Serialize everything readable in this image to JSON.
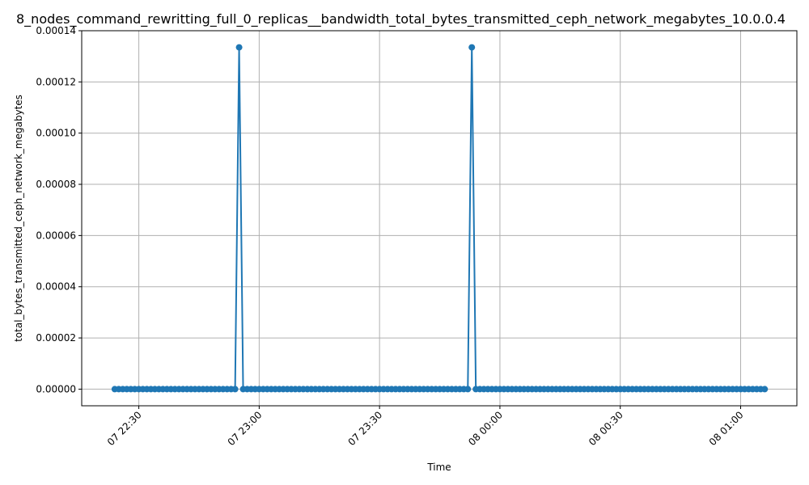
{
  "chart_data": {
    "type": "line",
    "title": "8_nodes_command_rewritting_full_0_replicas__bandwidth_total_bytes_transmitted_ceph_network_megabytes_10.0.0.4",
    "xlabel": "Time",
    "ylabel": "total_bytes_transmitted_ceph_network_megabytes",
    "x_start": "07 22:24",
    "x_end": "08 01:06",
    "sample_interval_minutes": 1,
    "x_ticks": [
      "07 22:30",
      "07 23:00",
      "07 23:30",
      "08 00:00",
      "08 00:30",
      "08 01:00"
    ],
    "y_ticks": [
      "0.00000",
      "0.00002",
      "0.00004",
      "0.00006",
      "0.00008",
      "0.00010",
      "0.00012",
      "0.00014"
    ],
    "ylim": [
      -6.5e-06,
      0.00014
    ],
    "grid": true,
    "marker": "circle",
    "series": [
      {
        "color": "#1f77b4",
        "baseline_value": 0.0,
        "peaks": [
          {
            "time": "07 22:55",
            "value": 0.0001335
          },
          {
            "time": "07 23:53",
            "value": 0.0001335
          }
        ]
      }
    ]
  }
}
